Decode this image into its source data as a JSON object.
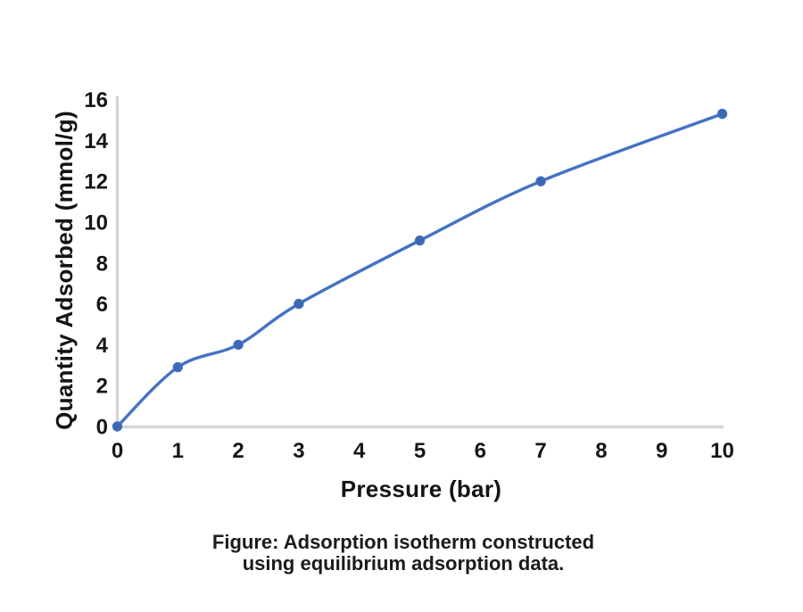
{
  "chart_data": {
    "type": "line",
    "series_name": "adsorption-isotherm",
    "x": [
      0,
      1,
      2,
      3,
      5,
      7,
      10
    ],
    "y": [
      0,
      2.9,
      4.0,
      6.0,
      9.1,
      12.0,
      15.3
    ],
    "xlabel": "Pressure (bar)",
    "ylabel": "Quantity Adsorbed (mmol/g)",
    "x_ticks": [
      0,
      1,
      2,
      3,
      4,
      5,
      6,
      7,
      8,
      9,
      10
    ],
    "y_ticks": [
      0,
      2,
      4,
      6,
      8,
      10,
      12,
      14,
      16
    ],
    "xlim": [
      0,
      10
    ],
    "ylim": [
      0,
      16
    ],
    "grid": false,
    "legend": "none",
    "smooth": true,
    "marker": "circle",
    "colors": {
      "line": "#4472C4",
      "marker_fill": "#3E68B1",
      "axis": "#d5d5d5",
      "tick_text": "#161616"
    }
  },
  "caption": {
    "line1": "Figure: Adsorption isotherm constructed",
    "line2": "using equilibrium adsorption data."
  }
}
